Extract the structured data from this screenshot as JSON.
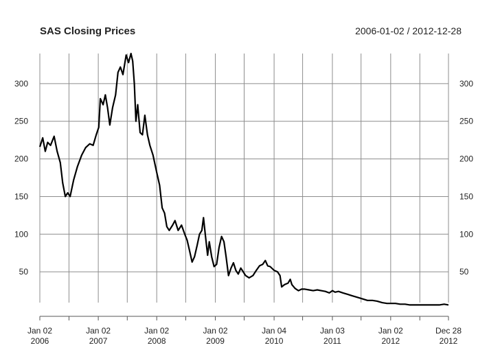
{
  "chart_data": {
    "type": "line",
    "title": "SAS Closing Prices",
    "date_range_label": "2006-01-02 / 2012-12-28",
    "xlabel": "",
    "ylabel": "",
    "y_ticks": [
      50,
      100,
      150,
      200,
      250,
      300
    ],
    "ylim": [
      0,
      340
    ],
    "xlim": [
      "2006-01-02",
      "2012-12-28"
    ],
    "x_ticks": [
      {
        "date": "2006-01-02",
        "line1": "Jan 02",
        "line2": "2006"
      },
      {
        "date": "2007-01-02",
        "line1": "Jan 02",
        "line2": "2007"
      },
      {
        "date": "2008-01-02",
        "line1": "Jan 02",
        "line2": "2008"
      },
      {
        "date": "2009-01-02",
        "line1": "Jan 02",
        "line2": "2009"
      },
      {
        "date": "2010-01-04",
        "line1": "Jan 04",
        "line2": "2010"
      },
      {
        "date": "2011-01-03",
        "line1": "Jan 03",
        "line2": "2011"
      },
      {
        "date": "2012-01-02",
        "line1": "Jan 02",
        "line2": "2012"
      },
      {
        "date": "2012-12-28",
        "line1": "Dec 28",
        "line2": "2012"
      }
    ],
    "minor_ticks": [
      "2006-07-03",
      "2007-07-02",
      "2008-07-01",
      "2009-07-01",
      "2010-07-01",
      "2011-07-01",
      "2012-07-02"
    ],
    "grid": true,
    "series": [
      {
        "name": "",
        "color": "#000000",
        "points": [
          [
            "2006-01-02",
            216
          ],
          [
            "2006-01-20",
            228
          ],
          [
            "2006-02-05",
            210
          ],
          [
            "2006-02-20",
            222
          ],
          [
            "2006-03-10",
            218
          ],
          [
            "2006-04-01",
            230
          ],
          [
            "2006-04-20",
            210
          ],
          [
            "2006-05-10",
            195
          ],
          [
            "2006-05-25",
            168
          ],
          [
            "2006-06-10",
            150
          ],
          [
            "2006-06-25",
            155
          ],
          [
            "2006-07-10",
            150
          ],
          [
            "2006-08-01",
            172
          ],
          [
            "2006-08-25",
            190
          ],
          [
            "2006-09-20",
            205
          ],
          [
            "2006-10-15",
            215
          ],
          [
            "2006-11-10",
            220
          ],
          [
            "2006-12-01",
            218
          ],
          [
            "2006-12-20",
            232
          ],
          [
            "2007-01-05",
            242
          ],
          [
            "2007-01-15",
            280
          ],
          [
            "2007-02-01",
            272
          ],
          [
            "2007-02-15",
            285
          ],
          [
            "2007-03-01",
            268
          ],
          [
            "2007-03-15",
            245
          ],
          [
            "2007-04-01",
            268
          ],
          [
            "2007-04-20",
            285
          ],
          [
            "2007-05-05",
            315
          ],
          [
            "2007-05-20",
            322
          ],
          [
            "2007-06-05",
            312
          ],
          [
            "2007-06-25",
            338
          ],
          [
            "2007-07-10",
            328
          ],
          [
            "2007-07-25",
            340
          ],
          [
            "2007-08-05",
            330
          ],
          [
            "2007-08-15",
            300
          ],
          [
            "2007-08-25",
            250
          ],
          [
            "2007-09-05",
            272
          ],
          [
            "2007-09-20",
            235
          ],
          [
            "2007-10-05",
            232
          ],
          [
            "2007-10-20",
            258
          ],
          [
            "2007-11-05",
            232
          ],
          [
            "2007-11-20",
            218
          ],
          [
            "2007-12-10",
            205
          ],
          [
            "2008-01-02",
            182
          ],
          [
            "2008-01-20",
            165
          ],
          [
            "2008-02-05",
            135
          ],
          [
            "2008-02-20",
            128
          ],
          [
            "2008-03-05",
            110
          ],
          [
            "2008-03-20",
            105
          ],
          [
            "2008-04-10",
            112
          ],
          [
            "2008-04-25",
            118
          ],
          [
            "2008-05-15",
            105
          ],
          [
            "2008-06-05",
            112
          ],
          [
            "2008-06-25",
            100
          ],
          [
            "2008-07-10",
            92
          ],
          [
            "2008-07-25",
            78
          ],
          [
            "2008-08-10",
            63
          ],
          [
            "2008-08-25",
            70
          ],
          [
            "2008-09-10",
            85
          ],
          [
            "2008-09-25",
            100
          ],
          [
            "2008-10-10",
            105
          ],
          [
            "2008-10-20",
            122
          ],
          [
            "2008-11-01",
            98
          ],
          [
            "2008-11-15",
            72
          ],
          [
            "2008-11-25",
            90
          ],
          [
            "2008-12-10",
            70
          ],
          [
            "2008-12-25",
            57
          ],
          [
            "2009-01-10",
            60
          ],
          [
            "2009-01-25",
            82
          ],
          [
            "2009-02-10",
            97
          ],
          [
            "2009-02-25",
            90
          ],
          [
            "2009-03-10",
            70
          ],
          [
            "2009-03-25",
            45
          ],
          [
            "2009-04-10",
            55
          ],
          [
            "2009-04-25",
            62
          ],
          [
            "2009-05-10",
            52
          ],
          [
            "2009-05-25",
            47
          ],
          [
            "2009-06-10",
            55
          ],
          [
            "2009-06-25",
            50
          ],
          [
            "2009-07-10",
            45
          ],
          [
            "2009-08-01",
            42
          ],
          [
            "2009-08-25",
            45
          ],
          [
            "2009-09-15",
            52
          ],
          [
            "2009-10-05",
            58
          ],
          [
            "2009-10-25",
            60
          ],
          [
            "2009-11-10",
            65
          ],
          [
            "2009-11-25",
            58
          ],
          [
            "2009-12-10",
            57
          ],
          [
            "2010-01-04",
            52
          ],
          [
            "2010-01-25",
            50
          ],
          [
            "2010-02-10",
            45
          ],
          [
            "2010-02-20",
            30
          ],
          [
            "2010-03-10",
            33
          ],
          [
            "2010-04-01",
            35
          ],
          [
            "2010-04-15",
            40
          ],
          [
            "2010-04-25",
            33
          ],
          [
            "2010-05-15",
            28
          ],
          [
            "2010-06-05",
            25
          ],
          [
            "2010-06-25",
            27
          ],
          [
            "2010-07-15",
            27
          ],
          [
            "2010-08-10",
            26
          ],
          [
            "2010-09-05",
            25
          ],
          [
            "2010-10-01",
            26
          ],
          [
            "2010-10-25",
            25
          ],
          [
            "2010-11-20",
            24
          ],
          [
            "2010-12-15",
            22
          ],
          [
            "2011-01-03",
            25
          ],
          [
            "2011-01-20",
            23
          ],
          [
            "2011-02-10",
            24
          ],
          [
            "2011-03-10",
            22
          ],
          [
            "2011-04-10",
            20
          ],
          [
            "2011-05-10",
            18
          ],
          [
            "2011-06-10",
            16
          ],
          [
            "2011-07-10",
            14
          ],
          [
            "2011-08-10",
            12
          ],
          [
            "2011-09-10",
            12
          ],
          [
            "2011-10-10",
            11
          ],
          [
            "2011-11-10",
            9
          ],
          [
            "2011-12-10",
            8
          ],
          [
            "2012-01-02",
            8
          ],
          [
            "2012-02-01",
            8
          ],
          [
            "2012-03-01",
            7
          ],
          [
            "2012-04-01",
            7
          ],
          [
            "2012-05-01",
            6
          ],
          [
            "2012-06-01",
            6
          ],
          [
            "2012-07-01",
            6
          ],
          [
            "2012-08-01",
            6
          ],
          [
            "2012-09-01",
            6
          ],
          [
            "2012-10-01",
            6
          ],
          [
            "2012-11-01",
            6
          ],
          [
            "2012-12-01",
            7
          ],
          [
            "2012-12-28",
            6
          ]
        ]
      }
    ]
  }
}
